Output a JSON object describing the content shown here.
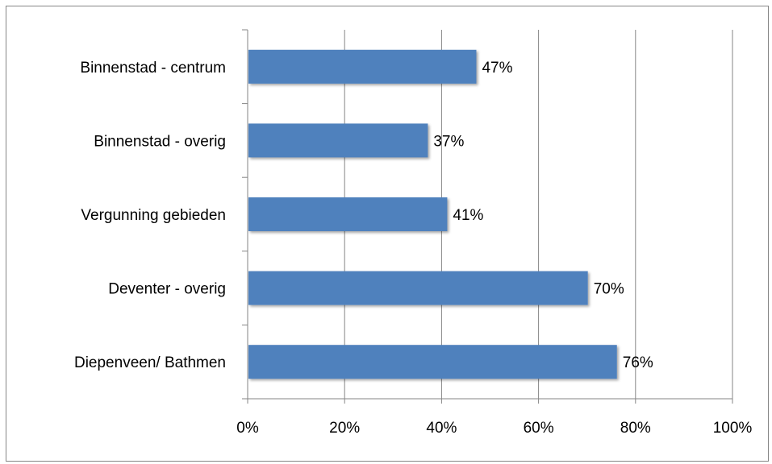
{
  "caption": "",
  "chart_data": {
    "type": "bar",
    "orientation": "horizontal",
    "categories": [
      "Binnenstad - centrum",
      "Binnenstad - overig",
      "Vergunning gebieden",
      "Deventer - overig",
      "Diepenveen/ Bathmen"
    ],
    "values": [
      47,
      37,
      41,
      70,
      76
    ],
    "data_labels": [
      "47%",
      "37%",
      "41%",
      "70%",
      "76%"
    ],
    "xlim": [
      0,
      100
    ],
    "x_ticks": [
      0,
      20,
      40,
      60,
      80,
      100
    ],
    "x_tick_labels": [
      "0%",
      "20%",
      "40%",
      "60%",
      "80%",
      "100%"
    ],
    "grid": "vertical",
    "legend": "none",
    "bar_color": "#4f81bd"
  }
}
